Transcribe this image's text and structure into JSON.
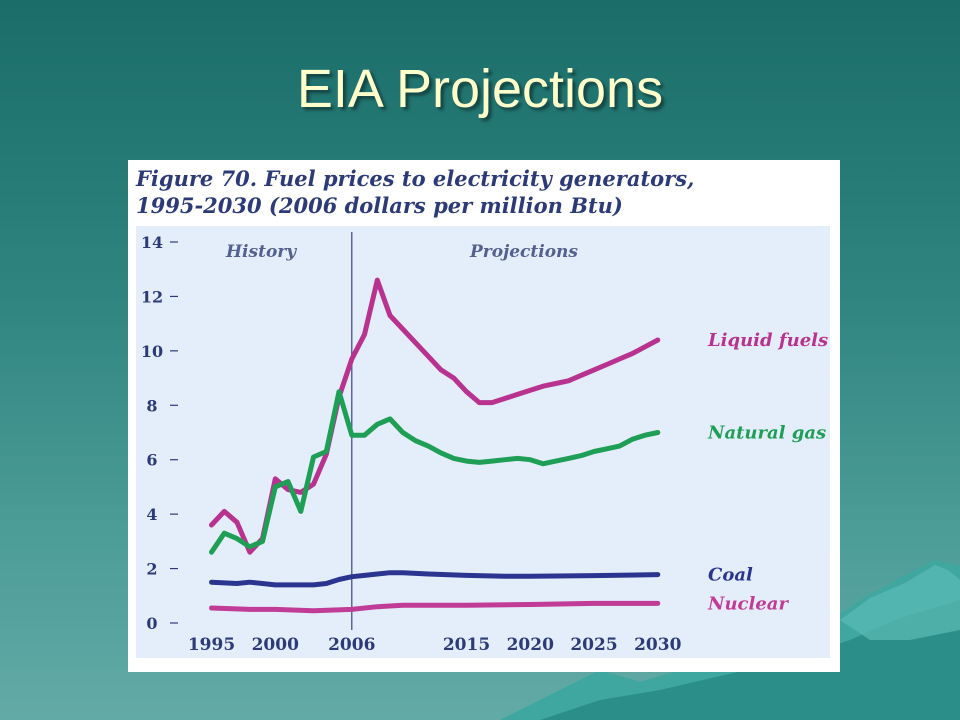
{
  "slide": {
    "title": "EIA Projections"
  },
  "colors": {
    "background": "#2a7f7a",
    "title_text": "#ffffcc",
    "figure_text": "#2d3a78",
    "plot_area": "#e4eefa"
  },
  "chart_data": {
    "type": "line",
    "title": "Figure 70. Fuel prices to electricity generators,",
    "subtitle": "1995-2030 (2006 dollars per million Btu)",
    "xlabel": "",
    "ylabel": "",
    "xlim": [
      1993,
      2033
    ],
    "ylim": [
      0,
      14
    ],
    "yticks": [
      0,
      2,
      4,
      6,
      8,
      10,
      12,
      14
    ],
    "xtick_labels": [
      "1995",
      "2000",
      "2006",
      "2015",
      "2020",
      "2025",
      "2030"
    ],
    "xtick_values": [
      1995,
      2000,
      2006,
      2015,
      2020,
      2025,
      2030
    ],
    "divider_year": 2006,
    "annotations": {
      "history": "History",
      "projections": "Projections"
    },
    "grid": false,
    "legend": "inline labels at right end of each line",
    "series": [
      {
        "name": "Liquid fuels",
        "color": "#b8338f",
        "x": [
          1995,
          1996,
          1997,
          1998,
          1999,
          2000,
          2001,
          2002,
          2003,
          2004,
          2005,
          2006,
          2007,
          2008,
          2009,
          2010,
          2011,
          2012,
          2013,
          2014,
          2015,
          2016,
          2017,
          2018,
          2019,
          2020,
          2021,
          2022,
          2023,
          2024,
          2025,
          2026,
          2027,
          2028,
          2029,
          2030
        ],
        "values": [
          3.6,
          4.1,
          3.7,
          2.6,
          3.1,
          5.3,
          4.9,
          4.8,
          5.1,
          6.2,
          8.3,
          9.7,
          10.6,
          12.6,
          11.3,
          10.8,
          10.3,
          9.8,
          9.3,
          9.0,
          8.5,
          8.1,
          8.1,
          8.25,
          8.4,
          8.55,
          8.7,
          8.8,
          8.9,
          9.1,
          9.3,
          9.5,
          9.7,
          9.9,
          10.15,
          10.4
        ]
      },
      {
        "name": "Natural gas",
        "color": "#1f9e55",
        "x": [
          1995,
          1996,
          1997,
          1998,
          1999,
          2000,
          2001,
          2002,
          2003,
          2004,
          2005,
          2006,
          2007,
          2008,
          2009,
          2010,
          2011,
          2012,
          2013,
          2014,
          2015,
          2016,
          2017,
          2018,
          2019,
          2020,
          2021,
          2022,
          2023,
          2024,
          2025,
          2026,
          2027,
          2028,
          2029,
          2030
        ],
        "values": [
          2.6,
          3.3,
          3.1,
          2.8,
          3.0,
          5.0,
          5.2,
          4.1,
          6.1,
          6.3,
          8.5,
          6.9,
          6.9,
          7.3,
          7.5,
          7.0,
          6.7,
          6.5,
          6.25,
          6.05,
          5.95,
          5.9,
          5.95,
          6.0,
          6.05,
          6.0,
          5.85,
          5.95,
          6.05,
          6.15,
          6.3,
          6.4,
          6.5,
          6.75,
          6.9,
          7.0
        ]
      },
      {
        "name": "Coal",
        "color": "#2b3590",
        "x": [
          1995,
          1997,
          1998,
          2000,
          2003,
          2004,
          2005,
          2006,
          2007,
          2008,
          2009,
          2010,
          2012,
          2015,
          2018,
          2020,
          2025,
          2030
        ],
        "values": [
          1.5,
          1.45,
          1.5,
          1.4,
          1.4,
          1.45,
          1.6,
          1.7,
          1.75,
          1.8,
          1.85,
          1.85,
          1.8,
          1.75,
          1.72,
          1.72,
          1.74,
          1.78
        ]
      },
      {
        "name": "Nuclear",
        "color": "#c03c96",
        "x": [
          1995,
          1998,
          2000,
          2003,
          2006,
          2008,
          2010,
          2015,
          2020,
          2025,
          2030
        ],
        "values": [
          0.55,
          0.5,
          0.5,
          0.45,
          0.5,
          0.6,
          0.65,
          0.65,
          0.68,
          0.72,
          0.72
        ]
      }
    ]
  }
}
